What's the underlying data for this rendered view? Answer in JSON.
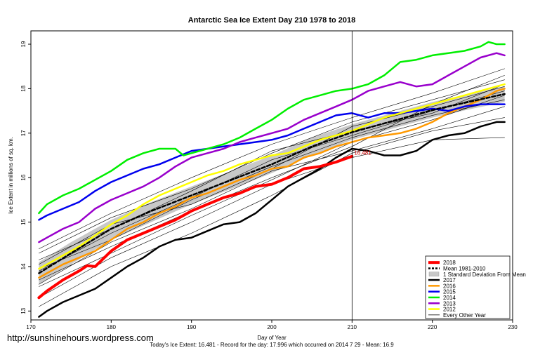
{
  "url_text": "http://sunshinehours.wordpress.com",
  "footer_text": "Today's Ice Extent: 16.481  - Record for the day: 17.996 which occurred on 2014 7 29  - Mean: 16.9",
  "chart_data": {
    "type": "line",
    "title": "Antarctic Sea Ice Extent Day 210 1978 to 2018",
    "xlabel": "Day of Year",
    "ylabel": "Ice Extent in millions of sq. km.",
    "xlim": [
      170,
      230
    ],
    "ylim": [
      12.8,
      19.3
    ],
    "xticks": [
      170,
      180,
      190,
      200,
      210,
      220,
      230
    ],
    "yticks": [
      13,
      14,
      15,
      16,
      17,
      18,
      19
    ],
    "grid": false,
    "legend_position": "bottom-right",
    "vline_x": 210,
    "annotation": {
      "x": 210,
      "y": 16.481,
      "text": "16.481"
    },
    "band": {
      "name": "1 Standard Deviation From Mean",
      "color": "#c8c8c8",
      "x": [
        171,
        175,
        180,
        185,
        190,
        195,
        200,
        205,
        210,
        215,
        220,
        225,
        229
      ],
      "lower": [
        13.6,
        14.05,
        14.6,
        15.0,
        15.4,
        15.75,
        16.1,
        16.5,
        16.85,
        17.1,
        17.35,
        17.55,
        17.7
      ],
      "upper": [
        14.1,
        14.55,
        15.05,
        15.45,
        15.8,
        16.15,
        16.5,
        16.9,
        17.2,
        17.45,
        17.7,
        17.9,
        18.05
      ]
    },
    "series": [
      {
        "name": "2018",
        "color": "#ff0000",
        "width": 4,
        "dash": "",
        "x": [
          171,
          172,
          174,
          176,
          177,
          178,
          180,
          182,
          184,
          186,
          188,
          190,
          192,
          194,
          196,
          198,
          200,
          202,
          204,
          206,
          208,
          210
        ],
        "y": [
          13.3,
          13.45,
          13.7,
          13.9,
          14.02,
          14.0,
          14.35,
          14.6,
          14.75,
          14.9,
          15.05,
          15.25,
          15.4,
          15.55,
          15.65,
          15.8,
          15.85,
          16.0,
          16.2,
          16.25,
          16.35,
          16.48
        ]
      },
      {
        "name": "Mean 1981-2010",
        "color": "#000000",
        "width": 2.5,
        "dash": "5,3",
        "x": [
          171,
          175,
          180,
          185,
          190,
          195,
          200,
          205,
          210,
          215,
          220,
          225,
          229
        ],
        "y": [
          13.85,
          14.3,
          14.85,
          15.25,
          15.6,
          15.95,
          16.3,
          16.7,
          17.02,
          17.27,
          17.52,
          17.72,
          17.88
        ]
      },
      {
        "name": "2017",
        "color": "#000000",
        "width": 2.5,
        "dash": "",
        "x": [
          171,
          172,
          174,
          176,
          178,
          180,
          182,
          184,
          186,
          188,
          190,
          192,
          194,
          196,
          198,
          200,
          202,
          204,
          206,
          208,
          210,
          212,
          214,
          216,
          218,
          220,
          222,
          224,
          226,
          228,
          229
        ],
        "y": [
          12.87,
          13.0,
          13.2,
          13.35,
          13.5,
          13.75,
          14.0,
          14.2,
          14.45,
          14.6,
          14.65,
          14.8,
          14.95,
          15.0,
          15.2,
          15.5,
          15.8,
          16.0,
          16.2,
          16.45,
          16.65,
          16.6,
          16.5,
          16.5,
          16.6,
          16.85,
          16.95,
          17.0,
          17.15,
          17.25,
          17.25
        ]
      },
      {
        "name": "2016",
        "color": "#ff9900",
        "width": 2.5,
        "dash": "",
        "x": [
          171,
          172,
          174,
          176,
          178,
          180,
          182,
          184,
          186,
          188,
          190,
          192,
          194,
          196,
          198,
          200,
          202,
          204,
          206,
          208,
          210,
          212,
          214,
          216,
          218,
          220,
          222,
          224,
          226,
          228,
          229
        ],
        "y": [
          13.75,
          13.85,
          14.05,
          14.2,
          14.35,
          14.6,
          14.85,
          15.0,
          15.2,
          15.35,
          15.55,
          15.65,
          15.8,
          15.95,
          16.05,
          16.2,
          16.25,
          16.45,
          16.55,
          16.7,
          16.8,
          16.9,
          16.95,
          17.0,
          17.1,
          17.25,
          17.45,
          17.6,
          17.75,
          17.95,
          18.0
        ]
      },
      {
        "name": "2015",
        "color": "#0000ee",
        "width": 2.5,
        "dash": "",
        "x": [
          171,
          172,
          174,
          176,
          178,
          180,
          182,
          184,
          186,
          188,
          190,
          192,
          194,
          196,
          198,
          200,
          202,
          204,
          206,
          208,
          210,
          212,
          214,
          216,
          218,
          220,
          222,
          224,
          226,
          228,
          229
        ],
        "y": [
          15.05,
          15.15,
          15.3,
          15.45,
          15.7,
          15.9,
          16.05,
          16.2,
          16.3,
          16.45,
          16.6,
          16.65,
          16.7,
          16.75,
          16.8,
          16.85,
          16.95,
          17.1,
          17.25,
          17.4,
          17.45,
          17.35,
          17.45,
          17.45,
          17.5,
          17.55,
          17.5,
          17.6,
          17.65,
          17.65,
          17.65
        ]
      },
      {
        "name": "2014",
        "color": "#00ee00",
        "width": 2.5,
        "dash": "",
        "x": [
          171,
          172,
          174,
          176,
          178,
          180,
          182,
          184,
          186,
          188,
          189,
          190,
          192,
          194,
          196,
          198,
          200,
          202,
          204,
          206,
          208,
          210,
          212,
          214,
          216,
          218,
          220,
          222,
          224,
          226,
          227,
          228,
          229
        ],
        "y": [
          15.2,
          15.4,
          15.6,
          15.75,
          15.95,
          16.15,
          16.4,
          16.55,
          16.65,
          16.65,
          16.5,
          16.55,
          16.65,
          16.75,
          16.9,
          17.1,
          17.3,
          17.55,
          17.75,
          17.85,
          17.95,
          18.0,
          18.1,
          18.3,
          18.6,
          18.65,
          18.75,
          18.8,
          18.85,
          18.95,
          19.05,
          19.0,
          19.0
        ]
      },
      {
        "name": "2013",
        "color": "#9900cc",
        "width": 2.5,
        "dash": "",
        "x": [
          171,
          172,
          174,
          176,
          178,
          180,
          182,
          184,
          186,
          188,
          190,
          192,
          194,
          196,
          198,
          200,
          202,
          204,
          206,
          208,
          210,
          212,
          214,
          216,
          218,
          220,
          222,
          224,
          226,
          228,
          229
        ],
        "y": [
          14.55,
          14.65,
          14.85,
          15.0,
          15.3,
          15.5,
          15.65,
          15.8,
          16.0,
          16.25,
          16.45,
          16.55,
          16.65,
          16.8,
          16.9,
          17.0,
          17.1,
          17.3,
          17.45,
          17.6,
          17.75,
          17.95,
          18.05,
          18.15,
          18.05,
          18.1,
          18.3,
          18.5,
          18.7,
          18.8,
          18.75
        ]
      },
      {
        "name": "2012",
        "color": "#ffff00",
        "width": 2.5,
        "dash": "",
        "x": [
          171,
          172,
          174,
          176,
          178,
          180,
          182,
          184,
          186,
          188,
          190,
          192,
          194,
          196,
          198,
          200,
          202,
          204,
          206,
          208,
          210,
          212,
          214,
          216,
          218,
          220,
          222,
          224,
          226,
          228,
          229
        ],
        "y": [
          13.95,
          14.05,
          14.25,
          14.45,
          14.7,
          14.95,
          15.15,
          15.4,
          15.6,
          15.75,
          15.9,
          16.05,
          16.15,
          16.3,
          16.4,
          16.5,
          16.55,
          16.7,
          16.85,
          16.95,
          17.05,
          17.2,
          17.35,
          17.45,
          17.55,
          17.65,
          17.75,
          17.85,
          17.95,
          18.05,
          18.1
        ]
      },
      {
        "name": "Every Other Year",
        "color": "#000000",
        "width": 0.6,
        "dash": "",
        "x": [
          171,
          180,
          190,
          200,
          210,
          220,
          229
        ],
        "y": [
          14.3,
          15.1,
          15.75,
          16.55,
          17.25,
          17.75,
          18.2
        ]
      },
      {
        "name": "",
        "color": "#000000",
        "width": 0.6,
        "dash": "",
        "x": [
          171,
          180,
          190,
          200,
          210,
          220,
          229
        ],
        "y": [
          13.55,
          14.3,
          15.15,
          15.95,
          16.8,
          17.3,
          17.85
        ]
      },
      {
        "name": "",
        "color": "#000000",
        "width": 0.6,
        "dash": "",
        "x": [
          171,
          180,
          190,
          200,
          210,
          220,
          229
        ],
        "y": [
          13.9,
          14.75,
          15.55,
          16.4,
          16.95,
          17.5,
          17.95
        ]
      },
      {
        "name": "",
        "color": "#000000",
        "width": 0.6,
        "dash": "",
        "x": [
          171,
          180,
          190,
          200,
          210,
          220,
          229
        ],
        "y": [
          13.1,
          14.0,
          14.75,
          15.6,
          16.55,
          17.05,
          17.35
        ]
      },
      {
        "name": "",
        "color": "#000000",
        "width": 0.6,
        "dash": "",
        "x": [
          171,
          180,
          190,
          200,
          210,
          220,
          229
        ],
        "y": [
          14.05,
          14.95,
          15.4,
          16.2,
          17.15,
          17.6,
          18.05
        ]
      },
      {
        "name": "",
        "color": "#000000",
        "width": 0.6,
        "dash": "",
        "x": [
          171,
          180,
          190,
          200,
          210,
          220,
          229
        ],
        "y": [
          13.7,
          14.45,
          15.25,
          16.0,
          16.7,
          17.65,
          18.3
        ]
      },
      {
        "name": "",
        "color": "#000000",
        "width": 0.6,
        "dash": "",
        "x": [
          171,
          180,
          190,
          200,
          210,
          220,
          229
        ],
        "y": [
          14.4,
          15.2,
          16.0,
          16.75,
          17.35,
          17.9,
          18.45
        ]
      },
      {
        "name": "",
        "color": "#000000",
        "width": 0.6,
        "dash": "",
        "x": [
          171,
          180,
          190,
          200,
          210,
          220,
          229
        ],
        "y": [
          13.3,
          14.2,
          15.0,
          15.85,
          16.45,
          16.85,
          16.9
        ]
      },
      {
        "name": "",
        "color": "#000000",
        "width": 0.6,
        "dash": "",
        "x": [
          171,
          180,
          190,
          200,
          210,
          220,
          229
        ],
        "y": [
          13.95,
          14.6,
          15.5,
          16.25,
          16.9,
          17.4,
          17.75
        ]
      },
      {
        "name": "",
        "color": "#000000",
        "width": 0.6,
        "dash": "",
        "x": [
          171,
          180,
          190,
          200,
          210,
          220,
          229
        ],
        "y": [
          14.15,
          14.85,
          15.7,
          16.6,
          17.05,
          17.45,
          18.1
        ]
      },
      {
        "name": "",
        "color": "#000000",
        "width": 0.6,
        "dash": "",
        "x": [
          171,
          180,
          190,
          200,
          210,
          220,
          229
        ],
        "y": [
          13.6,
          14.55,
          15.3,
          16.15,
          16.6,
          17.1,
          17.6
        ]
      }
    ]
  }
}
